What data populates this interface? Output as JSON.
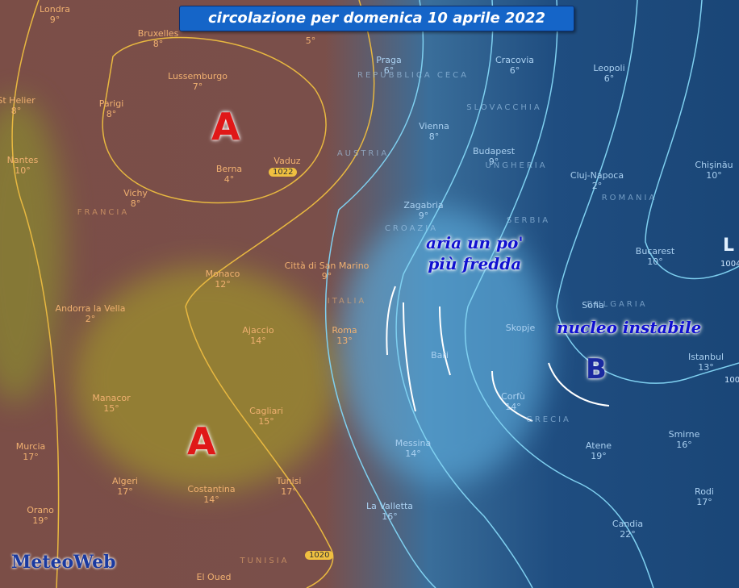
{
  "header": {
    "title": "circolazione per domenica 10 aprile 2022"
  },
  "pressure_centers": [
    {
      "label": "A"
    },
    {
      "label": "A"
    },
    {
      "label": "B"
    },
    {
      "label": "L"
    }
  ],
  "annotations": [
    {
      "lines": [
        "aria un po'",
        "più fredda"
      ]
    },
    {
      "lines": [
        "nucleo instabile"
      ]
    }
  ],
  "isobar_labels": [
    "1022",
    "1020",
    "1004",
    "100"
  ],
  "countries": [
    "FRANCIA",
    "ITALIA",
    "AUSTRIA",
    "REPUBBLICA CECA",
    "SLOVACCHIA",
    "UNGHERIA",
    "ROMANIA",
    "CROAZIA",
    "SERBIA",
    "BULGARIA",
    "GRECIA",
    "TUNISIA"
  ],
  "cities": [
    {
      "name": "Londra",
      "temp": "9°"
    },
    {
      "name": "Bruxelles",
      "temp": "8°"
    },
    {
      "name": "Lussemburgo",
      "temp": "7°"
    },
    {
      "name": "St Helier",
      "temp": "8°"
    },
    {
      "name": "Parigi",
      "temp": "8°"
    },
    {
      "name": "Nantes",
      "temp": "10°"
    },
    {
      "name": "Berna",
      "temp": "4°"
    },
    {
      "name": "Vaduz"
    },
    {
      "name": "Vichy",
      "temp": "8°"
    },
    {
      "name": "Praga",
      "temp": "6°"
    },
    {
      "name": "Cracovia",
      "temp": "6°"
    },
    {
      "name": "Leopoli",
      "temp": "6°"
    },
    {
      "name": "Vienna",
      "temp": "8°"
    },
    {
      "name": "Budapest",
      "temp": "9°"
    },
    {
      "name": "Cluj-Napoca",
      "temp": "2°"
    },
    {
      "name": "Chişinău",
      "temp": "10°"
    },
    {
      "name": "Zagabria",
      "temp": "9°"
    },
    {
      "name": "Bucarest",
      "temp": "10°"
    },
    {
      "name": "Città di San Marino",
      "temp": "9°"
    },
    {
      "name": "Monaco",
      "temp": "12°"
    },
    {
      "name": "Andorra la Vella",
      "temp": "2°"
    },
    {
      "name": "Ajaccio",
      "temp": "14°"
    },
    {
      "name": "Roma",
      "temp": "13°"
    },
    {
      "name": "Bari"
    },
    {
      "name": "Sofia"
    },
    {
      "name": "Skopje"
    },
    {
      "name": "Istanbul",
      "temp": "13°"
    },
    {
      "name": "Manacor",
      "temp": "15°"
    },
    {
      "name": "Cagliari",
      "temp": "15°"
    },
    {
      "name": "Murcia",
      "temp": "17°"
    },
    {
      "name": "Algeri",
      "temp": "17°"
    },
    {
      "name": "Costantina",
      "temp": "14°"
    },
    {
      "name": "Tunisi",
      "temp": "17°"
    },
    {
      "name": "Orano",
      "temp": "19°"
    },
    {
      "name": "Messina",
      "temp": "14°"
    },
    {
      "name": "Corfù",
      "temp": "14°"
    },
    {
      "name": "Atene",
      "temp": "19°"
    },
    {
      "name": "Smirne",
      "temp": "16°"
    },
    {
      "name": "La Valletta",
      "temp": "16°"
    },
    {
      "name": "Rodi",
      "temp": "17°"
    },
    {
      "name": "Candia",
      "temp": "22°"
    },
    {
      "name": "El Oued"
    },
    {
      "temp": "5°"
    }
  ],
  "logo": {
    "text": "MeteoWeb"
  }
}
